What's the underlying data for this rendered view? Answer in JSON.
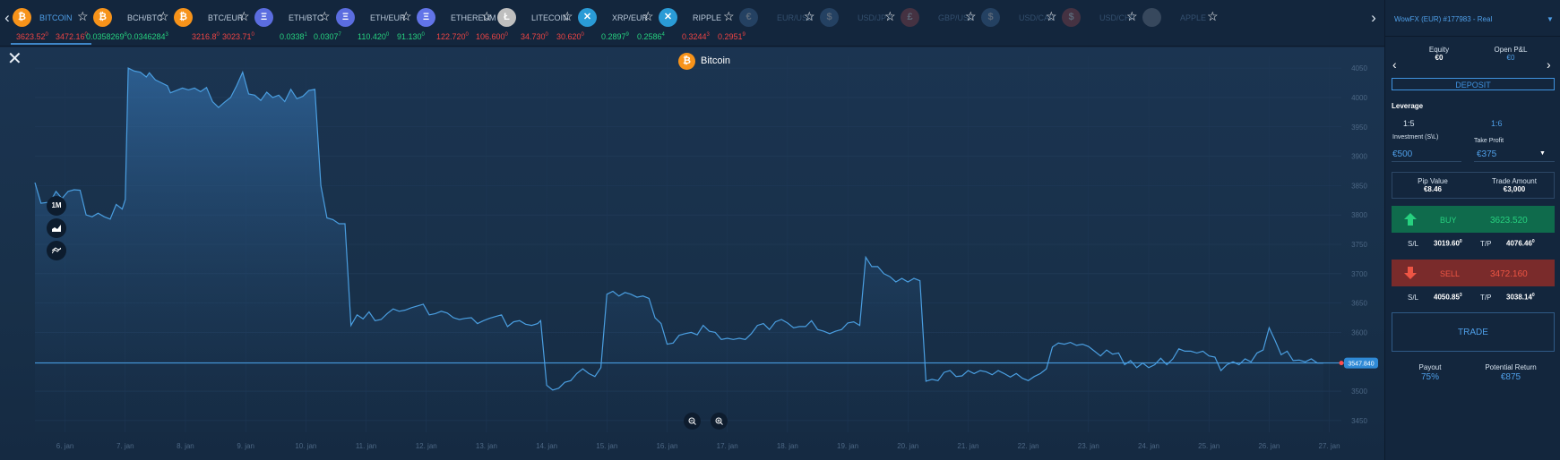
{
  "ticker": {
    "items": [
      {
        "name": "BITCOIN",
        "bid": "3623.52",
        "bid_sup": "0",
        "ask": "3472.16",
        "ask_sup": "0",
        "coin": "₿",
        "color": "#f7931a",
        "active": true,
        "dim": false,
        "bid_class": "bid",
        "ask_class": "ask"
      },
      {
        "name": "BCH/BTC",
        "bid": "0.0358269",
        "bid_sup": "8",
        "ask": "0.0346284",
        "ask_sup": "3",
        "coin": "₿",
        "color": "#f7931a",
        "active": false,
        "dim": false,
        "bid_class": "green",
        "ask_class": "green"
      },
      {
        "name": "BTC/EUR",
        "bid": "3216.8",
        "bid_sup": "0",
        "ask": "3023.71",
        "ask_sup": "0",
        "coin": "₿",
        "color": "#f7931a",
        "active": false,
        "dim": false,
        "bid_class": "bid",
        "ask_class": "ask"
      },
      {
        "name": "ETH/BTC",
        "bid": "0.0338",
        "bid_sup": "1",
        "ask": "0.0307",
        "ask_sup": "7",
        "coin": "Ξ",
        "color": "#5b6de0",
        "active": false,
        "dim": false,
        "bid_class": "green",
        "ask_class": "green"
      },
      {
        "name": "ETH/EUR",
        "bid": "110.420",
        "bid_sup": "0",
        "ask": "91.130",
        "ask_sup": "0",
        "coin": "Ξ",
        "color": "#5b6de0",
        "active": false,
        "dim": false,
        "bid_class": "green",
        "ask_class": "green"
      },
      {
        "name": "ETHEREUM",
        "bid": "122.720",
        "bid_sup": "0",
        "ask": "106.600",
        "ask_sup": "0",
        "coin": "Ξ",
        "color": "#6274e8",
        "active": false,
        "dim": false,
        "bid_class": "bid",
        "ask_class": "ask"
      },
      {
        "name": "LITECOIN",
        "bid": "34.730",
        "bid_sup": "0",
        "ask": "30.620",
        "ask_sup": "0",
        "coin": "Ł",
        "color": "#bfbfbf",
        "active": false,
        "dim": false,
        "bid_class": "bid",
        "ask_class": "ask"
      },
      {
        "name": "XRP/EUR",
        "bid": "0.2897",
        "bid_sup": "9",
        "ask": "0.2586",
        "ask_sup": "4",
        "coin": "✕",
        "color": "#2a9bd6",
        "active": false,
        "dim": false,
        "bid_class": "green",
        "ask_class": "green"
      },
      {
        "name": "RIPPLE",
        "bid": "0.3244",
        "bid_sup": "3",
        "ask": "0.2951",
        "ask_sup": "9",
        "coin": "✕",
        "color": "#2a9bd6",
        "active": false,
        "dim": false,
        "bid_class": "bid",
        "ask_class": "ask"
      },
      {
        "name": "EUR/USD",
        "bid": "",
        "bid_sup": "",
        "ask": "",
        "ask_sup": "",
        "coin": "€",
        "color": "#4e7fb8",
        "active": false,
        "dim": true,
        "bid_class": "bid",
        "ask_class": "ask"
      },
      {
        "name": "USD/JPY",
        "bid": "",
        "bid_sup": "",
        "ask": "",
        "ask_sup": "",
        "coin": "$",
        "color": "#4e7fb8",
        "active": false,
        "dim": true,
        "bid_class": "bid",
        "ask_class": "ask"
      },
      {
        "name": "GBP/USD",
        "bid": "",
        "bid_sup": "",
        "ask": "",
        "ask_sup": "",
        "coin": "£",
        "color": "#b84e4e",
        "active": false,
        "dim": true,
        "bid_class": "bid",
        "ask_class": "ask"
      },
      {
        "name": "USD/CAD",
        "bid": "",
        "bid_sup": "",
        "ask": "",
        "ask_sup": "",
        "coin": "$",
        "color": "#4e7fb8",
        "active": false,
        "dim": true,
        "bid_class": "bid",
        "ask_class": "ask"
      },
      {
        "name": "USD/CHF",
        "bid": "",
        "bid_sup": "",
        "ask": "",
        "ask_sup": "",
        "coin": "$",
        "color": "#b84e4e",
        "active": false,
        "dim": true,
        "bid_class": "bid",
        "ask_class": "ask"
      },
      {
        "name": "APPLE",
        "bid": "",
        "bid_sup": "",
        "ask": "",
        "ask_sup": "",
        "coin": "",
        "color": "#8a99a8",
        "active": false,
        "dim": true,
        "bid_class": "bid",
        "ask_class": "ask"
      }
    ]
  },
  "chart": {
    "title": "Bitcoin",
    "tools": [
      "1M"
    ],
    "current_price_label": "3547.840"
  },
  "chart_data": {
    "type": "area",
    "ylim": [
      3430,
      4070
    ],
    "y_ticks": [
      4050,
      4000,
      3950,
      3900,
      3850,
      3800,
      3750,
      3700,
      3650,
      3600,
      3550,
      3500,
      3450
    ],
    "x_ticks": [
      "6. jan",
      "7. jan",
      "8. jan",
      "9. jan",
      "10. jan",
      "11. jan",
      "12. jan",
      "13. jan",
      "14. jan",
      "15. jan",
      "16. jan",
      "17. jan",
      "18. jan",
      "19. jan",
      "20. jan",
      "21. jan",
      "22. jan",
      "23. jan",
      "24. jan",
      "25. jan",
      "26. jan",
      "27. jan"
    ],
    "x_range": [
      5.5,
      27.2
    ],
    "current_price": 3547.84,
    "series": [
      {
        "values": [
          [
            5.5,
            3855
          ],
          [
            5.6,
            3820
          ],
          [
            5.75,
            3822
          ],
          [
            5.85,
            3840
          ],
          [
            5.95,
            3828
          ],
          [
            6.05,
            3840
          ],
          [
            6.15,
            3843
          ],
          [
            6.25,
            3842
          ],
          [
            6.35,
            3800
          ],
          [
            6.45,
            3797
          ],
          [
            6.55,
            3803
          ],
          [
            6.65,
            3797
          ],
          [
            6.75,
            3793
          ],
          [
            6.85,
            3818
          ],
          [
            6.95,
            3810
          ],
          [
            7.0,
            3826
          ],
          [
            7.05,
            4050
          ],
          [
            7.15,
            4045
          ],
          [
            7.25,
            4043
          ],
          [
            7.35,
            4035
          ],
          [
            7.4,
            4042
          ],
          [
            7.5,
            4030
          ],
          [
            7.6,
            4025
          ],
          [
            7.7,
            4020
          ],
          [
            7.75,
            4008
          ],
          [
            7.85,
            4012
          ],
          [
            7.95,
            4016
          ],
          [
            8.05,
            4013
          ],
          [
            8.15,
            4016
          ],
          [
            8.25,
            4010
          ],
          [
            8.35,
            4017
          ],
          [
            8.45,
            3993
          ],
          [
            8.55,
            3983
          ],
          [
            8.65,
            3992
          ],
          [
            8.75,
            4000
          ],
          [
            8.85,
            4020
          ],
          [
            8.95,
            4043
          ],
          [
            9.05,
            4006
          ],
          [
            9.15,
            4004
          ],
          [
            9.25,
            3995
          ],
          [
            9.35,
            4009
          ],
          [
            9.45,
            4000
          ],
          [
            9.55,
            4004
          ],
          [
            9.65,
            3993
          ],
          [
            9.75,
            4014
          ],
          [
            9.85,
            3998
          ],
          [
            9.95,
            4002
          ],
          [
            10.05,
            4012
          ],
          [
            10.15,
            4014
          ],
          [
            10.25,
            3850
          ],
          [
            10.35,
            3795
          ],
          [
            10.45,
            3792
          ],
          [
            10.55,
            3785
          ],
          [
            10.65,
            3785
          ],
          [
            10.75,
            3612
          ],
          [
            10.85,
            3630
          ],
          [
            10.95,
            3623
          ],
          [
            11.05,
            3635
          ],
          [
            11.15,
            3620
          ],
          [
            11.25,
            3622
          ],
          [
            11.35,
            3632
          ],
          [
            11.45,
            3640
          ],
          [
            11.55,
            3636
          ],
          [
            11.65,
            3638
          ],
          [
            11.75,
            3642
          ],
          [
            11.85,
            3645
          ],
          [
            11.95,
            3648
          ],
          [
            12.05,
            3630
          ],
          [
            12.15,
            3632
          ],
          [
            12.25,
            3636
          ],
          [
            12.35,
            3633
          ],
          [
            12.45,
            3625
          ],
          [
            12.55,
            3622
          ],
          [
            12.65,
            3624
          ],
          [
            12.75,
            3625
          ],
          [
            12.85,
            3615
          ],
          [
            12.95,
            3620
          ],
          [
            13.05,
            3624
          ],
          [
            13.15,
            3627
          ],
          [
            13.25,
            3630
          ],
          [
            13.35,
            3610
          ],
          [
            13.45,
            3618
          ],
          [
            13.55,
            3620
          ],
          [
            13.65,
            3614
          ],
          [
            13.75,
            3612
          ],
          [
            13.85,
            3615
          ],
          [
            13.9,
            3620
          ],
          [
            14.0,
            3510
          ],
          [
            14.1,
            3502
          ],
          [
            14.2,
            3505
          ],
          [
            14.3,
            3515
          ],
          [
            14.4,
            3518
          ],
          [
            14.5,
            3530
          ],
          [
            14.6,
            3538
          ],
          [
            14.7,
            3530
          ],
          [
            14.8,
            3525
          ],
          [
            14.9,
            3540
          ],
          [
            15.0,
            3665
          ],
          [
            15.1,
            3670
          ],
          [
            15.2,
            3662
          ],
          [
            15.3,
            3668
          ],
          [
            15.4,
            3665
          ],
          [
            15.5,
            3660
          ],
          [
            15.6,
            3662
          ],
          [
            15.7,
            3658
          ],
          [
            15.8,
            3625
          ],
          [
            15.9,
            3615
          ],
          [
            16.0,
            3580
          ],
          [
            16.1,
            3582
          ],
          [
            16.2,
            3595
          ],
          [
            16.3,
            3598
          ],
          [
            16.4,
            3600
          ],
          [
            16.5,
            3596
          ],
          [
            16.6,
            3612
          ],
          [
            16.7,
            3602
          ],
          [
            16.8,
            3600
          ],
          [
            16.9,
            3588
          ],
          [
            17.0,
            3590
          ],
          [
            17.1,
            3588
          ],
          [
            17.2,
            3590
          ],
          [
            17.3,
            3588
          ],
          [
            17.4,
            3598
          ],
          [
            17.5,
            3612
          ],
          [
            17.6,
            3615
          ],
          [
            17.7,
            3605
          ],
          [
            17.8,
            3618
          ],
          [
            17.9,
            3622
          ],
          [
            18.0,
            3616
          ],
          [
            18.1,
            3608
          ],
          [
            18.2,
            3610
          ],
          [
            18.3,
            3610
          ],
          [
            18.4,
            3620
          ],
          [
            18.5,
            3605
          ],
          [
            18.6,
            3602
          ],
          [
            18.7,
            3598
          ],
          [
            18.8,
            3602
          ],
          [
            18.9,
            3605
          ],
          [
            19.0,
            3616
          ],
          [
            19.1,
            3618
          ],
          [
            19.2,
            3612
          ],
          [
            19.3,
            3728
          ],
          [
            19.4,
            3712
          ],
          [
            19.5,
            3712
          ],
          [
            19.6,
            3700
          ],
          [
            19.7,
            3695
          ],
          [
            19.8,
            3686
          ],
          [
            19.9,
            3692
          ],
          [
            20.0,
            3686
          ],
          [
            20.1,
            3692
          ],
          [
            20.2,
            3688
          ],
          [
            20.3,
            3517
          ],
          [
            20.4,
            3520
          ],
          [
            20.5,
            3518
          ],
          [
            20.6,
            3532
          ],
          [
            20.7,
            3535
          ],
          [
            20.8,
            3525
          ],
          [
            20.9,
            3526
          ],
          [
            21.0,
            3535
          ],
          [
            21.1,
            3530
          ],
          [
            21.2,
            3535
          ],
          [
            21.3,
            3533
          ],
          [
            21.4,
            3528
          ],
          [
            21.5,
            3535
          ],
          [
            21.6,
            3530
          ],
          [
            21.7,
            3524
          ],
          [
            21.8,
            3530
          ],
          [
            21.9,
            3522
          ],
          [
            22.0,
            3518
          ],
          [
            22.1,
            3525
          ],
          [
            22.2,
            3530
          ],
          [
            22.3,
            3538
          ],
          [
            22.4,
            3575
          ],
          [
            22.5,
            3582
          ],
          [
            22.6,
            3580
          ],
          [
            22.7,
            3583
          ],
          [
            22.8,
            3578
          ],
          [
            22.9,
            3580
          ],
          [
            23.0,
            3576
          ],
          [
            23.1,
            3568
          ],
          [
            23.2,
            3560
          ],
          [
            23.3,
            3570
          ],
          [
            23.4,
            3563
          ],
          [
            23.5,
            3565
          ],
          [
            23.6,
            3545
          ],
          [
            23.7,
            3552
          ],
          [
            23.8,
            3540
          ],
          [
            23.9,
            3548
          ],
          [
            24.0,
            3540
          ],
          [
            24.1,
            3545
          ],
          [
            24.2,
            3556
          ],
          [
            24.3,
            3545
          ],
          [
            24.4,
            3555
          ],
          [
            24.5,
            3572
          ],
          [
            24.6,
            3568
          ],
          [
            24.7,
            3568
          ],
          [
            24.8,
            3565
          ],
          [
            24.9,
            3568
          ],
          [
            25.0,
            3560
          ],
          [
            25.1,
            3558
          ],
          [
            25.2,
            3535
          ],
          [
            25.3,
            3545
          ],
          [
            25.4,
            3550
          ],
          [
            25.5,
            3545
          ],
          [
            25.6,
            3555
          ],
          [
            25.7,
            3550
          ],
          [
            25.8,
            3565
          ],
          [
            25.9,
            3570
          ],
          [
            26.0,
            3608
          ],
          [
            26.1,
            3586
          ],
          [
            26.2,
            3562
          ],
          [
            26.3,
            3568
          ],
          [
            26.4,
            3552
          ],
          [
            26.5,
            3553
          ],
          [
            26.6,
            3550
          ],
          [
            26.7,
            3555
          ],
          [
            26.8,
            3548
          ],
          [
            26.9,
            3547.84
          ]
        ]
      }
    ]
  },
  "panel": {
    "account": "WowFX (EUR) #177983 - Real",
    "equity_label": "Equity",
    "equity_value": "€0",
    "pnl_label": "Open P&L",
    "pnl_value": "€0",
    "deposit": "DEPOSIT",
    "leverage_label": "Leverage",
    "leverage_a": "1:5",
    "leverage_b": "1:6",
    "investment_label": "Investment (S\\L)",
    "investment_value": "€500",
    "take_profit_label": "Take Profit",
    "take_profit_value": "€375",
    "pip_label": "Pip Value",
    "pip_value": "€8.46",
    "trade_amount_label": "Trade Amount",
    "trade_amount_value": "€3,000",
    "buy_label": "BUY",
    "buy_price": "3623.520",
    "buy_sl_label": "S/L",
    "buy_sl_value": "3019.60",
    "buy_sl_sup": "0",
    "buy_tp_label": "T/P",
    "buy_tp_value": "4076.46",
    "buy_tp_sup": "0",
    "sell_label": "SELL",
    "sell_price": "3472.160",
    "sell_sl_label": "S/L",
    "sell_sl_value": "4050.85",
    "sell_sl_sup": "3",
    "sell_tp_label": "T/P",
    "sell_tp_value": "3038.14",
    "sell_tp_sup": "0",
    "trade": "TRADE",
    "payout_label": "Payout",
    "payout_value": "75%",
    "return_label": "Potential Return",
    "return_value": "€875"
  },
  "colors": {
    "line": "#4a9ee0",
    "buy": "#0f6b4c",
    "sell": "#7a2b2b",
    "accent": "#3f92df"
  }
}
